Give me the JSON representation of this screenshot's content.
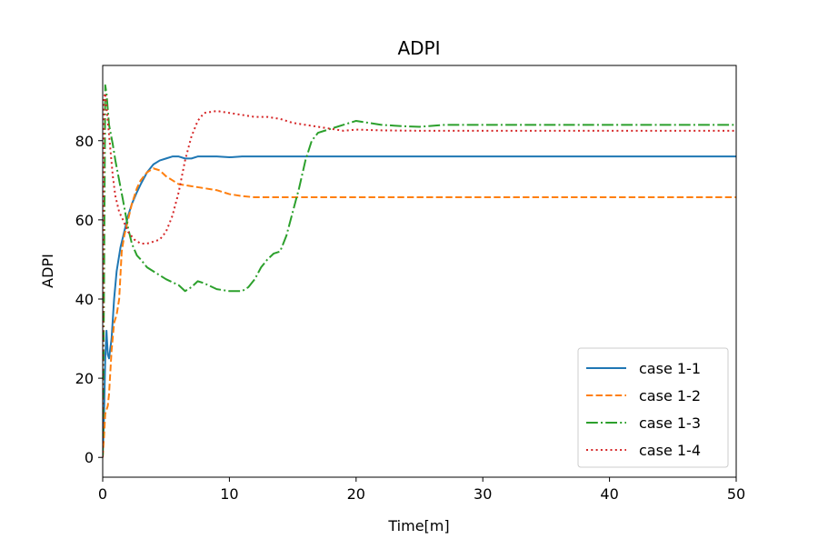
{
  "chart_data": {
    "type": "line",
    "title": "ADPI",
    "xlabel": "Time[m]",
    "ylabel": "ADPI",
    "xlim": [
      0,
      50
    ],
    "ylim": [
      -5,
      99
    ],
    "xticks": [
      0,
      10,
      20,
      30,
      40,
      50
    ],
    "yticks": [
      0,
      20,
      40,
      60,
      80
    ],
    "grid": false,
    "legend_position": "lower-right",
    "series": [
      {
        "name": "case 1-1",
        "color": "#1f77b4",
        "dash": "solid",
        "points": [
          [
            0,
            0
          ],
          [
            0.1,
            10
          ],
          [
            0.2,
            25
          ],
          [
            0.3,
            32
          ],
          [
            0.4,
            26
          ],
          [
            0.5,
            25
          ],
          [
            0.7,
            30
          ],
          [
            0.9,
            40
          ],
          [
            1.1,
            47
          ],
          [
            1.4,
            53
          ],
          [
            1.7,
            57
          ],
          [
            2.0,
            61
          ],
          [
            2.3,
            64
          ],
          [
            2.7,
            67
          ],
          [
            3.0,
            69
          ],
          [
            3.5,
            72
          ],
          [
            4.0,
            74
          ],
          [
            4.5,
            75
          ],
          [
            5.0,
            75.5
          ],
          [
            5.5,
            76
          ],
          [
            6.0,
            76
          ],
          [
            6.5,
            75.5
          ],
          [
            7.0,
            75.5
          ],
          [
            7.5,
            76
          ],
          [
            8.0,
            76
          ],
          [
            9,
            76
          ],
          [
            10,
            75.8
          ],
          [
            11,
            76
          ],
          [
            12,
            76
          ],
          [
            15,
            76
          ],
          [
            20,
            76
          ],
          [
            30,
            76
          ],
          [
            40,
            76
          ],
          [
            50,
            76
          ]
        ]
      },
      {
        "name": "case 1-2",
        "color": "#ff7f0e",
        "dash": "dashed",
        "points": [
          [
            0,
            0
          ],
          [
            0.1,
            5
          ],
          [
            0.2,
            11
          ],
          [
            0.3,
            12
          ],
          [
            0.4,
            13
          ],
          [
            0.5,
            16
          ],
          [
            0.7,
            27
          ],
          [
            0.9,
            34
          ],
          [
            1.1,
            36
          ],
          [
            1.3,
            40
          ],
          [
            1.5,
            52
          ],
          [
            1.7,
            56
          ],
          [
            2.0,
            60
          ],
          [
            2.3,
            64
          ],
          [
            2.7,
            68
          ],
          [
            3.0,
            70
          ],
          [
            3.5,
            72
          ],
          [
            4.0,
            73
          ],
          [
            4.5,
            72.5
          ],
          [
            5.0,
            71
          ],
          [
            5.5,
            70
          ],
          [
            6.0,
            69
          ],
          [
            7.0,
            68.5
          ],
          [
            8.0,
            68
          ],
          [
            9,
            67.5
          ],
          [
            10,
            66.5
          ],
          [
            11,
            66
          ],
          [
            12,
            65.7
          ],
          [
            15,
            65.7
          ],
          [
            20,
            65.7
          ],
          [
            30,
            65.7
          ],
          [
            40,
            65.7
          ],
          [
            50,
            65.7
          ]
        ]
      },
      {
        "name": "case 1-3",
        "color": "#2ca02c",
        "dash": "dashdot",
        "points": [
          [
            0,
            0
          ],
          [
            0.1,
            40
          ],
          [
            0.2,
            94
          ],
          [
            0.3,
            92
          ],
          [
            0.5,
            84
          ],
          [
            0.8,
            79
          ],
          [
            1.0,
            75
          ],
          [
            1.3,
            70
          ],
          [
            1.6,
            65
          ],
          [
            2.0,
            58
          ],
          [
            2.3,
            54
          ],
          [
            2.7,
            51
          ],
          [
            3.0,
            50
          ],
          [
            3.5,
            48
          ],
          [
            4.0,
            47
          ],
          [
            5.0,
            45
          ],
          [
            6.0,
            43.5
          ],
          [
            6.5,
            42
          ],
          [
            7.0,
            43
          ],
          [
            7.5,
            44.5
          ],
          [
            8.0,
            44
          ],
          [
            9.0,
            42.5
          ],
          [
            10,
            42
          ],
          [
            11,
            42
          ],
          [
            11.5,
            43
          ],
          [
            12,
            45
          ],
          [
            12.5,
            48
          ],
          [
            13,
            50
          ],
          [
            13.5,
            51.5
          ],
          [
            14,
            52
          ],
          [
            14.5,
            56
          ],
          [
            15,
            62
          ],
          [
            15.5,
            68
          ],
          [
            16,
            75
          ],
          [
            16.5,
            80
          ],
          [
            17,
            82
          ],
          [
            18,
            83
          ],
          [
            19,
            84
          ],
          [
            20,
            85
          ],
          [
            21,
            84.5
          ],
          [
            22,
            84
          ],
          [
            23,
            83.8
          ],
          [
            24,
            83.6
          ],
          [
            25,
            83.5
          ],
          [
            27,
            84
          ],
          [
            30,
            84
          ],
          [
            40,
            84
          ],
          [
            50,
            84
          ]
        ]
      },
      {
        "name": "case 1-4",
        "color": "#d62728",
        "dash": "dotted",
        "points": [
          [
            0,
            0
          ],
          [
            0.05,
            50
          ],
          [
            0.1,
            91
          ],
          [
            0.2,
            92
          ],
          [
            0.4,
            85
          ],
          [
            0.6,
            78
          ],
          [
            0.8,
            71
          ],
          [
            1.0,
            66
          ],
          [
            1.3,
            62
          ],
          [
            1.6,
            60
          ],
          [
            2.0,
            57
          ],
          [
            2.5,
            55
          ],
          [
            3.0,
            54
          ],
          [
            3.5,
            54
          ],
          [
            4.0,
            54.5
          ],
          [
            4.5,
            55
          ],
          [
            5.0,
            57
          ],
          [
            5.5,
            61
          ],
          [
            6.0,
            67
          ],
          [
            6.5,
            75
          ],
          [
            7.0,
            81
          ],
          [
            7.5,
            85
          ],
          [
            8.0,
            87
          ],
          [
            9.0,
            87.5
          ],
          [
            10,
            87
          ],
          [
            11,
            86.5
          ],
          [
            12,
            86
          ],
          [
            13,
            86
          ],
          [
            14,
            85.5
          ],
          [
            15,
            84.5
          ],
          [
            16,
            84
          ],
          [
            17,
            83.5
          ],
          [
            18,
            83
          ],
          [
            19,
            82.5
          ],
          [
            20,
            82.8
          ],
          [
            22,
            82.6
          ],
          [
            25,
            82.5
          ],
          [
            30,
            82.5
          ],
          [
            40,
            82.5
          ],
          [
            50,
            82.5
          ]
        ]
      }
    ]
  }
}
